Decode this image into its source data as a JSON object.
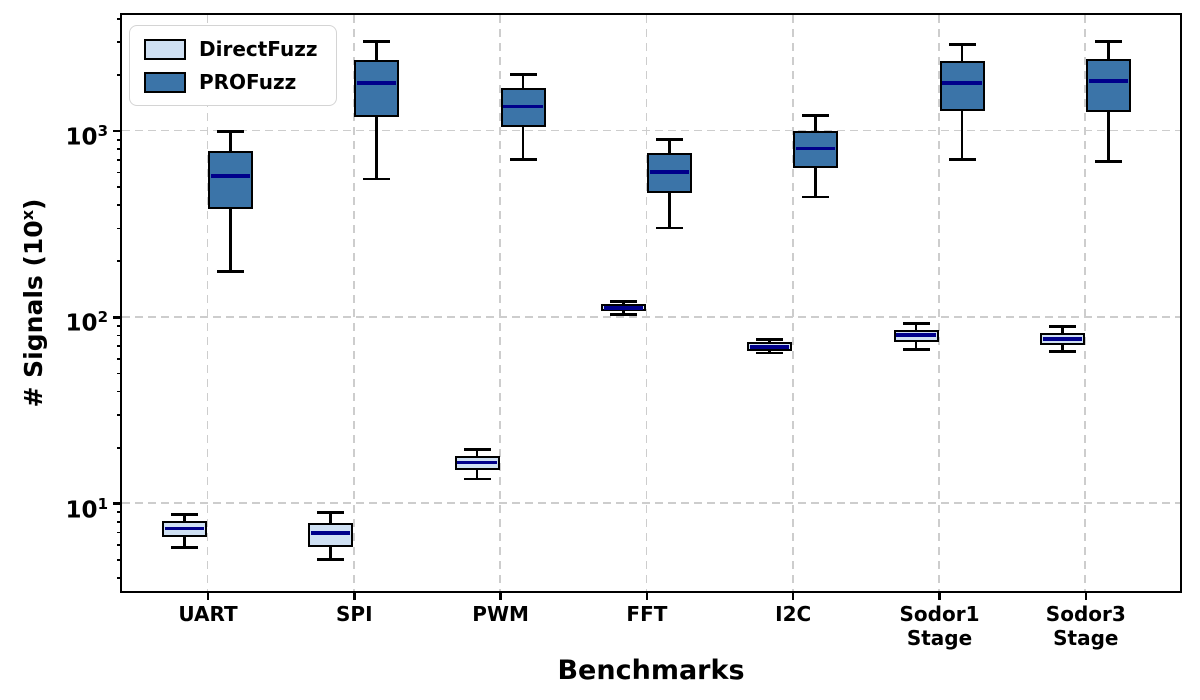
{
  "chart_data": {
    "type": "boxplot",
    "xlabel": "Benchmarks",
    "ylabel_parts": {
      "prefix": "# Signals (10",
      "sup": "x",
      "suffix": ")"
    },
    "y_scale": "log",
    "ylim": [
      3.4,
      4200
    ],
    "grid": "both-dashed",
    "legend_position": "upper-left",
    "y_ticks": [
      {
        "base": "10",
        "exp": "1",
        "value": 10
      },
      {
        "base": "10",
        "exp": "2",
        "value": 100
      },
      {
        "base": "10",
        "exp": "3",
        "value": 1000
      }
    ],
    "categories": [
      "UART",
      "SPI",
      "PWM",
      "FFT",
      "I2C",
      "Sodor1 Stage",
      "Sodor3 Stage"
    ],
    "category_label_lines": [
      [
        "UART"
      ],
      [
        "SPI"
      ],
      [
        "PWM"
      ],
      [
        "FFT"
      ],
      [
        "I2C"
      ],
      [
        "Sodor1",
        "Stage"
      ],
      [
        "Sodor3",
        "Stage"
      ]
    ],
    "series": [
      {
        "name": "DirectFuzz",
        "fill": "#cfe0f3",
        "boxes": [
          {
            "whislo": 5.8,
            "q1": 6.6,
            "med": 7.3,
            "q3": 8.0,
            "whishi": 8.7
          },
          {
            "whislo": 5.0,
            "q1": 5.8,
            "med": 6.9,
            "q3": 7.8,
            "whishi": 8.9
          },
          {
            "whislo": 13.5,
            "q1": 15,
            "med": 16.5,
            "q3": 18,
            "whishi": 19.5
          },
          {
            "whislo": 103,
            "q1": 107,
            "med": 112,
            "q3": 117,
            "whishi": 121
          },
          {
            "whislo": 64,
            "q1": 66,
            "med": 69,
            "q3": 73,
            "whishi": 76
          },
          {
            "whislo": 67,
            "q1": 73,
            "med": 80,
            "q3": 85,
            "whishi": 92
          },
          {
            "whislo": 65,
            "q1": 71,
            "med": 76,
            "q3": 82,
            "whishi": 89
          }
        ]
      },
      {
        "name": "PROFuzz",
        "fill": "#3b74a8",
        "boxes": [
          {
            "whislo": 175,
            "q1": 380,
            "med": 570,
            "q3": 780,
            "whishi": 990
          },
          {
            "whislo": 550,
            "q1": 1180,
            "med": 1800,
            "q3": 2380,
            "whishi": 3000
          },
          {
            "whislo": 700,
            "q1": 1050,
            "med": 1350,
            "q3": 1700,
            "whishi": 2000
          },
          {
            "whislo": 300,
            "q1": 460,
            "med": 600,
            "q3": 760,
            "whishi": 900
          },
          {
            "whislo": 440,
            "q1": 630,
            "med": 800,
            "q3": 1000,
            "whishi": 1200
          },
          {
            "whislo": 700,
            "q1": 1270,
            "med": 1800,
            "q3": 2370,
            "whishi": 2900
          },
          {
            "whislo": 680,
            "q1": 1260,
            "med": 1850,
            "q3": 2420,
            "whishi": 3000
          }
        ]
      }
    ],
    "colors": {
      "median": "#00008b",
      "box_edge": "#000000",
      "grid": "#cdcdcd",
      "axis": "#000000",
      "directfuzz_fill": "#cfe0f3",
      "profuzz_fill": "#3b74a8"
    }
  }
}
